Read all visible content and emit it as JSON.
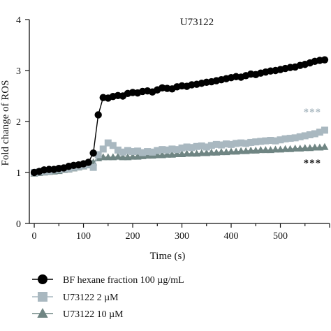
{
  "chart_data": {
    "type": "line",
    "title": "U73122",
    "xlabel": "Time (s)",
    "ylabel": "Fold change of ROS",
    "xlim": [
      -10,
      600
    ],
    "ylim": [
      0,
      4
    ],
    "xticks": [
      0,
      100,
      200,
      300,
      400,
      500
    ],
    "yticks": [
      0,
      1,
      2,
      3,
      4
    ],
    "grid": false,
    "legend_position": "bottom-left",
    "series": [
      {
        "name": "BF hexane fraction 100 µg/mL",
        "color": "#000000",
        "marker": "circle",
        "x": [
          0,
          10,
          20,
          30,
          40,
          50,
          60,
          70,
          80,
          90,
          100,
          110,
          120,
          130,
          140,
          150,
          160,
          170,
          180,
          190,
          200,
          210,
          220,
          230,
          240,
          250,
          260,
          270,
          280,
          290,
          300,
          310,
          320,
          330,
          340,
          350,
          360,
          370,
          380,
          390,
          400,
          410,
          420,
          430,
          440,
          450,
          460,
          470,
          480,
          490,
          500,
          510,
          520,
          530,
          540,
          550,
          560,
          570,
          580,
          590
        ],
        "values": [
          1.0,
          1.02,
          1.05,
          1.06,
          1.06,
          1.08,
          1.09,
          1.12,
          1.14,
          1.15,
          1.17,
          1.2,
          1.38,
          2.13,
          2.47,
          2.46,
          2.49,
          2.51,
          2.5,
          2.55,
          2.57,
          2.56,
          2.59,
          2.6,
          2.58,
          2.62,
          2.66,
          2.65,
          2.64,
          2.68,
          2.7,
          2.69,
          2.72,
          2.73,
          2.75,
          2.77,
          2.78,
          2.8,
          2.82,
          2.84,
          2.86,
          2.88,
          2.87,
          2.9,
          2.93,
          2.92,
          2.95,
          2.97,
          2.99,
          3.0,
          3.02,
          3.04,
          3.06,
          3.07,
          3.1,
          3.12,
          3.15,
          3.18,
          3.2,
          3.21
        ]
      },
      {
        "name": "U73122 2 µM",
        "color": "#a9b8c0",
        "marker": "square",
        "x": [
          0,
          10,
          20,
          30,
          40,
          50,
          60,
          70,
          80,
          90,
          100,
          110,
          120,
          130,
          140,
          150,
          160,
          170,
          180,
          190,
          200,
          210,
          220,
          230,
          240,
          250,
          260,
          270,
          280,
          290,
          300,
          310,
          320,
          330,
          340,
          350,
          360,
          370,
          380,
          390,
          400,
          410,
          420,
          430,
          440,
          450,
          460,
          470,
          480,
          490,
          500,
          510,
          520,
          530,
          540,
          550,
          560,
          570,
          580,
          590
        ],
        "values": [
          1.0,
          1.01,
          1.02,
          1.03,
          1.05,
          1.06,
          1.07,
          1.08,
          1.1,
          1.12,
          1.14,
          1.16,
          1.1,
          1.35,
          1.46,
          1.58,
          1.53,
          1.44,
          1.4,
          1.43,
          1.41,
          1.42,
          1.39,
          1.41,
          1.4,
          1.43,
          1.45,
          1.44,
          1.46,
          1.45,
          1.48,
          1.5,
          1.49,
          1.51,
          1.52,
          1.5,
          1.53,
          1.55,
          1.54,
          1.56,
          1.55,
          1.57,
          1.58,
          1.57,
          1.59,
          1.6,
          1.61,
          1.62,
          1.63,
          1.62,
          1.64,
          1.66,
          1.67,
          1.68,
          1.7,
          1.72,
          1.74,
          1.76,
          1.79,
          1.83
        ]
      },
      {
        "name": "U73122 10 µM",
        "color": "#6f8583",
        "marker": "triangle",
        "x": [
          0,
          10,
          20,
          30,
          40,
          50,
          60,
          70,
          80,
          90,
          100,
          110,
          120,
          130,
          140,
          150,
          160,
          170,
          180,
          190,
          200,
          210,
          220,
          230,
          240,
          250,
          260,
          270,
          280,
          290,
          300,
          310,
          320,
          330,
          340,
          350,
          360,
          370,
          380,
          390,
          400,
          410,
          420,
          430,
          440,
          450,
          460,
          470,
          480,
          490,
          500,
          510,
          520,
          530,
          540,
          550,
          560,
          570,
          580,
          590
        ],
        "values": [
          0.98,
          0.99,
          1.0,
          1.01,
          1.02,
          1.03,
          1.05,
          1.06,
          1.08,
          1.1,
          1.12,
          1.14,
          1.2,
          1.28,
          1.3,
          1.3,
          1.3,
          1.31,
          1.3,
          1.3,
          1.31,
          1.31,
          1.32,
          1.33,
          1.33,
          1.34,
          1.34,
          1.35,
          1.35,
          1.36,
          1.36,
          1.37,
          1.37,
          1.37,
          1.38,
          1.38,
          1.39,
          1.39,
          1.4,
          1.4,
          1.41,
          1.41,
          1.42,
          1.42,
          1.43,
          1.43,
          1.44,
          1.44,
          1.44,
          1.45,
          1.45,
          1.46,
          1.46,
          1.47,
          1.47,
          1.48,
          1.48,
          1.49,
          1.49,
          1.5
        ]
      }
    ],
    "annotations": [
      {
        "text": "***",
        "x": 565,
        "y": 2.12,
        "color": "#a9b8c0"
      },
      {
        "text": "***",
        "x": 565,
        "y": 1.12,
        "color": "#111111"
      }
    ]
  }
}
